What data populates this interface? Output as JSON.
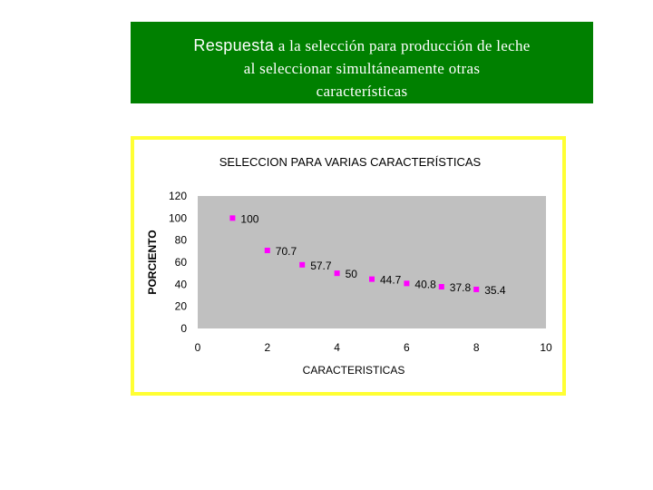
{
  "banner": {
    "lead": "Respuesta",
    "line1_rest": " a la selección para producción de leche",
    "line2": "al seleccionar simultáneamente  otras",
    "line3": "características"
  },
  "colors": {
    "banner_bg": "#008000",
    "frame": "#ffff33",
    "plot_bg": "#c0c0c0",
    "marker": "#ff00ff"
  },
  "chart_data": {
    "type": "scatter",
    "title": "SELECCION PARA VARIAS CARACTERÍSTICAS",
    "xlabel": "CARACTERISTICAS",
    "ylabel": "PORCIENTO",
    "xlim": [
      0,
      10
    ],
    "ylim": [
      0,
      120
    ],
    "xticks": [
      0,
      2,
      4,
      6,
      8,
      10
    ],
    "yticks": [
      0,
      20,
      40,
      60,
      80,
      100,
      120
    ],
    "grid": false,
    "x": [
      1,
      2,
      3,
      4,
      5,
      6,
      7,
      8
    ],
    "y": [
      100,
      70.7,
      57.7,
      50,
      44.7,
      40.8,
      37.8,
      35.4
    ],
    "labels": [
      "100",
      "70.7",
      "57.7",
      "50",
      "44.7",
      "40.8",
      "37.8",
      "35.4"
    ]
  }
}
